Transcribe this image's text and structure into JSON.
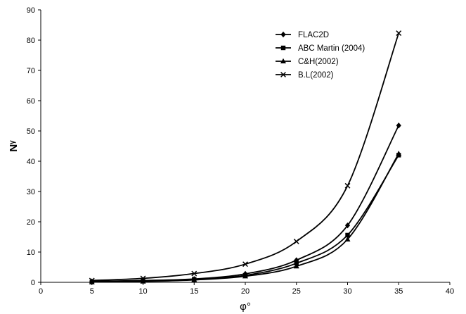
{
  "chart_data": {
    "type": "line",
    "xlabel": "φ°",
    "ylabel": "Nᵞ",
    "xlim": [
      0,
      40
    ],
    "ylim": [
      0,
      90
    ],
    "x_ticks": [
      "0",
      "5",
      "10",
      "15",
      "20",
      "25",
      "30",
      "35",
      "40"
    ],
    "y_ticks": [
      "0",
      "10",
      "20",
      "30",
      "40",
      "50",
      "60",
      "70",
      "80",
      "90"
    ],
    "grid": false,
    "legend_position": "top-right",
    "series": [
      {
        "name": "FLAC2D",
        "marker": "diamond",
        "x": [
          5,
          10,
          15,
          20,
          25,
          30,
          35
        ],
        "y": [
          0.3,
          0.6,
          1.1,
          2.8,
          7.3,
          18.8,
          51.8
        ]
      },
      {
        "name": "ABC Martin (2004)",
        "marker": "square",
        "x": [
          5,
          10,
          15,
          20,
          25,
          30,
          35
        ],
        "y": [
          0.1,
          0.4,
          1.0,
          2.3,
          6.3,
          15.6,
          42.0
        ]
      },
      {
        "name": "C&H(2002)",
        "marker": "triangle",
        "x": [
          5,
          10,
          15,
          20,
          25,
          30,
          35
        ],
        "y": [
          0.1,
          0.3,
          0.8,
          2.0,
          5.3,
          14.2,
          42.5
        ]
      },
      {
        "name": "B.L(2002)",
        "marker": "cross",
        "x": [
          5,
          10,
          15,
          20,
          25,
          30,
          35
        ],
        "y": [
          0.6,
          1.3,
          2.9,
          6.0,
          13.5,
          31.9,
          82.3
        ]
      }
    ]
  }
}
